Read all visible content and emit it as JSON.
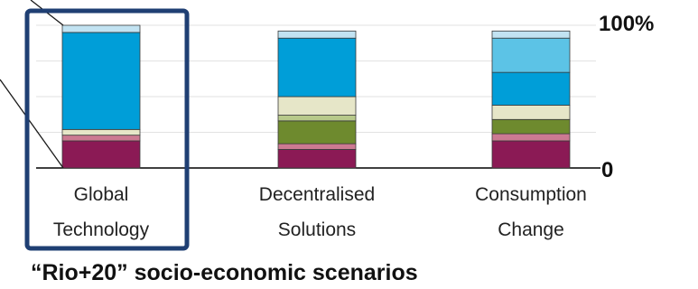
{
  "chart_data": {
    "type": "bar",
    "stacked": true,
    "title": "“Rio+20” socio-economic scenarios",
    "categories": [
      [
        "Global",
        "Technology"
      ],
      [
        "Decentralised",
        "Solutions"
      ],
      [
        "Consumption",
        "Change"
      ]
    ],
    "y_ticks": [
      "0",
      "100%"
    ],
    "ylim": [
      0,
      100
    ],
    "grid": true,
    "highlighted_category": "Global Technology",
    "segment_colors": [
      "#8b1a55",
      "#cc7a92",
      "#6e8a2e",
      "#b7c98a",
      "#e6e6c8",
      "#009ed8",
      "#5cc3e6",
      "#c2e3f2"
    ],
    "series": [
      {
        "values": [
          19,
          13,
          19
        ]
      },
      {
        "values": [
          4,
          4,
          5
        ]
      },
      {
        "values": [
          0,
          16,
          10
        ]
      },
      {
        "values": [
          0,
          4,
          0
        ]
      },
      {
        "values": [
          4,
          13,
          10
        ]
      },
      {
        "values": [
          68,
          41,
          23
        ]
      },
      {
        "values": [
          0,
          0,
          24
        ]
      },
      {
        "values": [
          5,
          5,
          5
        ]
      }
    ]
  }
}
